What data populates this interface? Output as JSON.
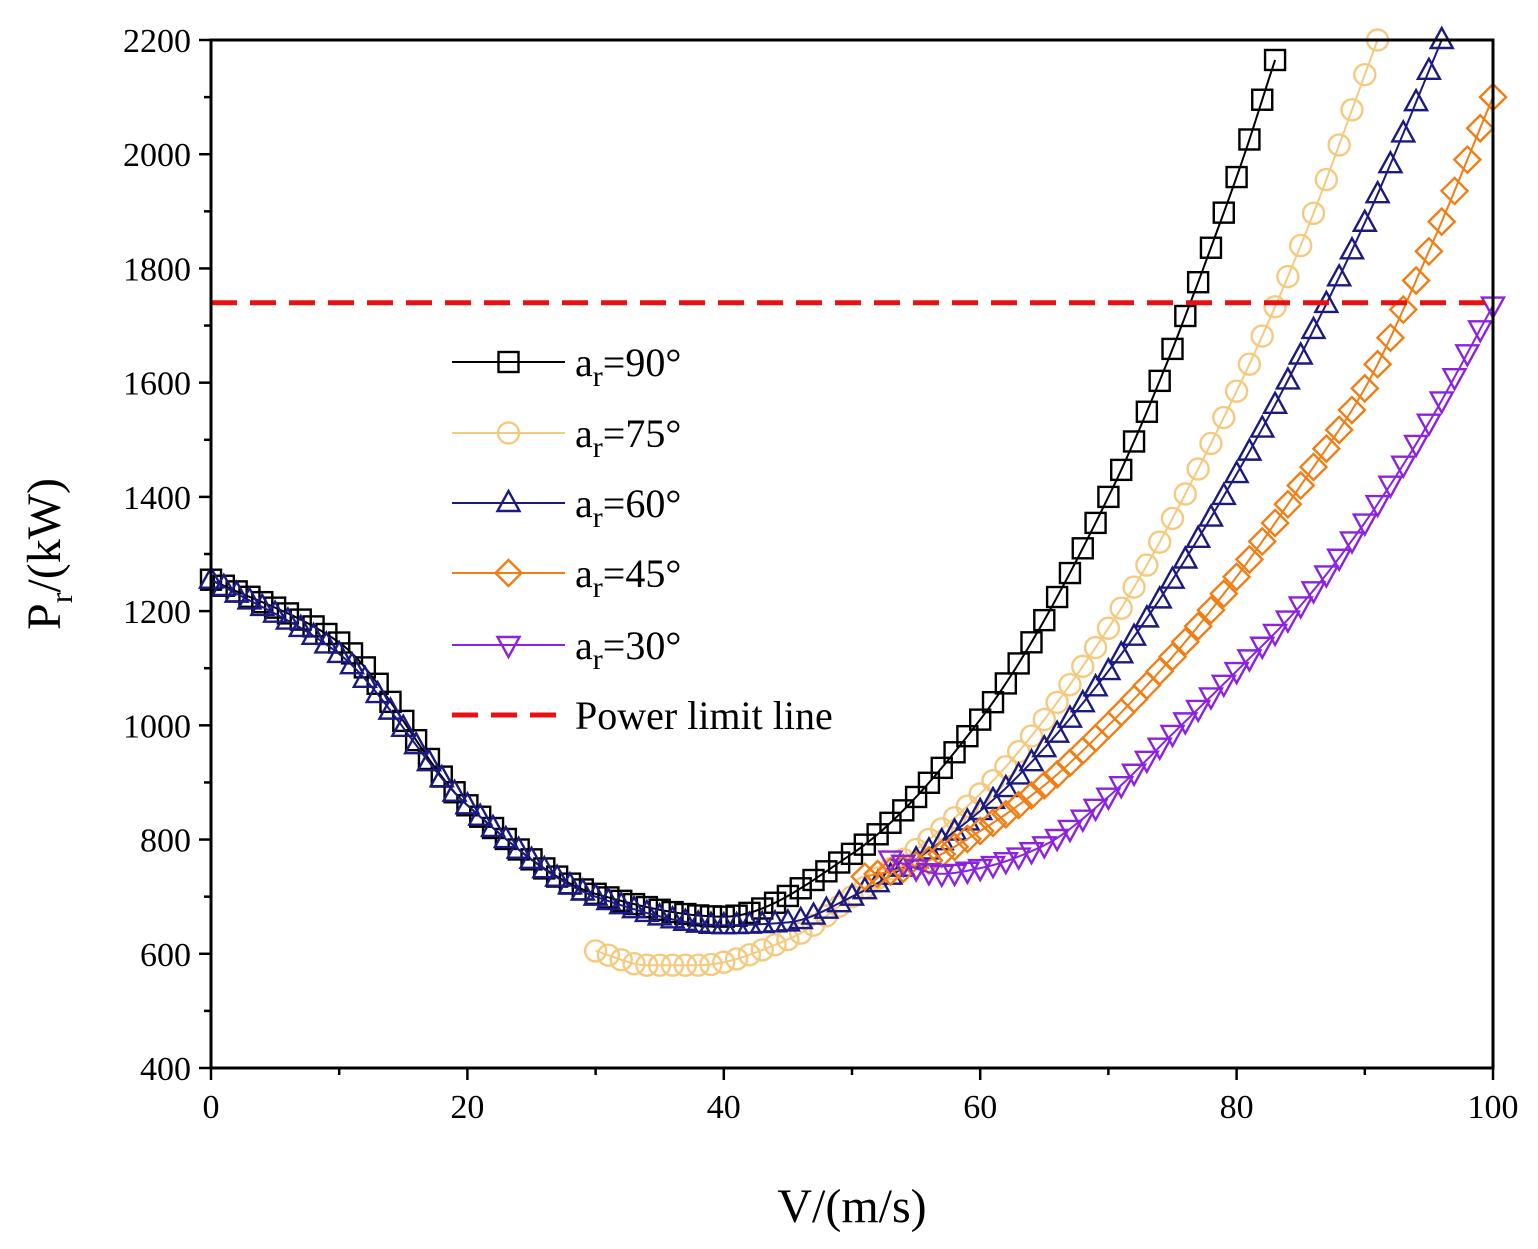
{
  "chart_data": {
    "type": "line",
    "title": "",
    "xlabel": "V/(m/s)",
    "ylabel": {
      "main": "P",
      "sub": "r",
      "unit": "/(kW)"
    },
    "xlim": [
      0,
      100
    ],
    "ylim": [
      400,
      2200
    ],
    "xticks": [
      0,
      20,
      40,
      60,
      80,
      100
    ],
    "xtick_labels": [
      "0",
      "20",
      "40",
      "60",
      "80",
      "100"
    ],
    "yticks": [
      400,
      600,
      800,
      1000,
      1200,
      1400,
      1600,
      1800,
      2000,
      2200
    ],
    "ytick_labels": [
      "400",
      "600",
      "800",
      "1000",
      "1200",
      "1400",
      "1600",
      "1800",
      "2000",
      "2200"
    ],
    "grid": false,
    "legend_position": "center-left",
    "series": [
      {
        "name": "a_r=90°",
        "label_main": "a",
        "label_sub": "r",
        "label_rest": "=90°",
        "color": "#000000",
        "marker": "square",
        "x": [
          0,
          10,
          20,
          30,
          40,
          50,
          60,
          70,
          80,
          83
        ],
        "y": [
          1255,
          1145,
          860,
          705,
          665,
          775,
          1010,
          1400,
          1960,
          2165
        ]
      },
      {
        "name": "a_r=75°",
        "label_main": "a",
        "label_sub": "r",
        "label_rest": "=75°",
        "color": "#F5C97E",
        "marker": "circle",
        "x": [
          30,
          34,
          38,
          45,
          50,
          60,
          70,
          80,
          85,
          91
        ],
        "y": [
          605,
          580,
          580,
          625,
          700,
          880,
          1170,
          1585,
          1840,
          2200
        ]
      },
      {
        "name": "a_r=60°",
        "label_main": "a",
        "label_sub": "r",
        "label_rest": "=60°",
        "color": "#1A1A80",
        "marker": "triangle-up",
        "x": [
          0,
          10,
          20,
          30,
          40,
          45,
          50,
          60,
          70,
          80,
          90,
          96
        ],
        "y": [
          1255,
          1125,
          860,
          700,
          650,
          655,
          700,
          850,
          1095,
          1440,
          1880,
          2200
        ]
      },
      {
        "name": "a_r=45°",
        "label_main": "a",
        "label_sub": "r",
        "label_rest": "=45°",
        "color": "#F07E14",
        "marker": "diamond",
        "x": [
          51,
          55,
          60,
          65,
          70,
          75,
          80,
          85,
          90,
          95,
          100
        ],
        "y": [
          735,
          755,
          815,
          895,
          1000,
          1120,
          1260,
          1420,
          1590,
          1830,
          2100
        ]
      },
      {
        "name": "a_r=30°",
        "label_main": "a",
        "label_sub": "r",
        "label_rest": "=30°",
        "color": "#8B22E0",
        "marker": "triangle-down",
        "x": [
          53,
          57,
          60,
          65,
          70,
          75,
          80,
          85,
          90,
          95,
          100
        ],
        "y": [
          765,
          740,
          750,
          790,
          875,
          985,
          1095,
          1210,
          1355,
          1530,
          1735
        ]
      }
    ],
    "reference_lines": [
      {
        "name": "Power limit line",
        "y": 1740,
        "color": "#E81010",
        "style": "dashed"
      }
    ]
  }
}
